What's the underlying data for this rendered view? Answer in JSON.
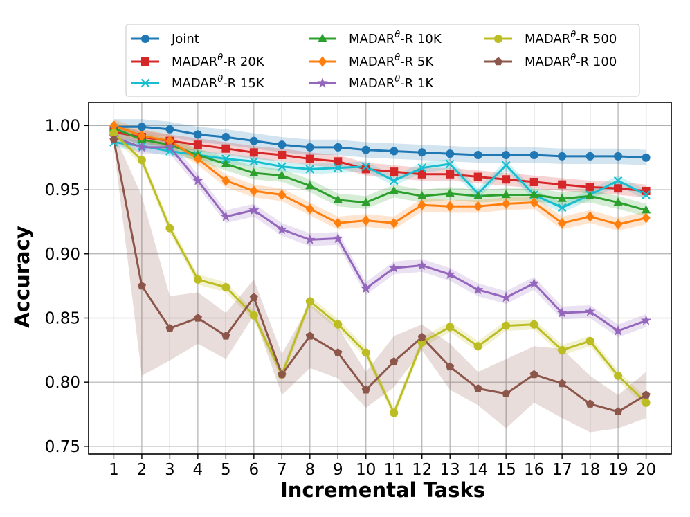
{
  "chart_data": {
    "type": "line",
    "title": "",
    "xlabel": "Incremental Tasks",
    "ylabel": "Accuracy",
    "x": [
      1,
      2,
      3,
      4,
      5,
      6,
      7,
      8,
      9,
      10,
      11,
      12,
      13,
      14,
      15,
      16,
      17,
      18,
      19,
      20
    ],
    "xlim": [
      0.1,
      20.9
    ],
    "ylim": [
      0.744,
      1.018
    ],
    "yticks": [
      0.75,
      0.8,
      0.85,
      0.9,
      0.95,
      1.0
    ],
    "ytick_labels": [
      "0.75",
      "0.80",
      "0.85",
      "0.90",
      "0.95",
      "1.00"
    ],
    "grid": true,
    "legend": "top-center (above plot), 3 columns",
    "series": [
      {
        "name": "Joint",
        "label_base": "Joint",
        "color": "#1f77b4",
        "marker": "circle",
        "values": [
          0.999,
          0.999,
          0.997,
          0.993,
          0.991,
          0.988,
          0.985,
          0.983,
          0.983,
          0.981,
          0.98,
          0.979,
          0.978,
          0.977,
          0.977,
          0.977,
          0.976,
          0.976,
          0.976,
          0.975
        ],
        "spread": [
          0.006,
          0.006,
          0.006,
          0.006,
          0.006,
          0.006,
          0.006,
          0.006,
          0.006,
          0.006,
          0.006,
          0.006,
          0.006,
          0.006,
          0.006,
          0.006,
          0.006,
          0.006,
          0.006,
          0.006
        ]
      },
      {
        "name": "MADARθ-R 20K",
        "label_base": "MADAR",
        "label_sup": "θ",
        "label_rest": "-R 20K",
        "color": "#d62728",
        "marker": "square",
        "values": [
          0.995,
          0.991,
          0.988,
          0.985,
          0.982,
          0.979,
          0.977,
          0.974,
          0.972,
          0.966,
          0.964,
          0.962,
          0.962,
          0.96,
          0.958,
          0.956,
          0.954,
          0.952,
          0.951,
          0.949
        ],
        "spread": [
          0.005,
          0.005,
          0.005,
          0.005,
          0.005,
          0.005,
          0.005,
          0.005,
          0.005,
          0.005,
          0.005,
          0.005,
          0.005,
          0.005,
          0.005,
          0.005,
          0.005,
          0.005,
          0.005,
          0.005
        ]
      },
      {
        "name": "MADARθ-R 15K",
        "label_base": "MADAR",
        "label_sup": "θ",
        "label_rest": "-R 15K",
        "color": "#17becf",
        "marker": "x",
        "values": [
          0.987,
          0.984,
          0.98,
          0.977,
          0.974,
          0.972,
          0.968,
          0.966,
          0.967,
          0.968,
          0.957,
          0.967,
          0.97,
          0.947,
          0.969,
          0.946,
          0.936,
          0.946,
          0.957,
          0.946
        ],
        "spread": [
          0.004,
          0.004,
          0.004,
          0.004,
          0.004,
          0.004,
          0.004,
          0.004,
          0.004,
          0.004,
          0.004,
          0.004,
          0.004,
          0.004,
          0.004,
          0.004,
          0.004,
          0.004,
          0.004,
          0.004
        ]
      },
      {
        "name": "MADARθ-R 10K",
        "label_base": "MADAR",
        "label_sup": "θ",
        "label_rest": "-R 10K",
        "color": "#2ca02c",
        "marker": "triangle",
        "values": [
          0.998,
          0.989,
          0.985,
          0.977,
          0.97,
          0.963,
          0.961,
          0.953,
          0.942,
          0.94,
          0.949,
          0.945,
          0.947,
          0.945,
          0.946,
          0.946,
          0.943,
          0.945,
          0.94,
          0.934
        ],
        "spread": [
          0.005,
          0.005,
          0.005,
          0.005,
          0.005,
          0.005,
          0.005,
          0.005,
          0.005,
          0.005,
          0.005,
          0.005,
          0.005,
          0.005,
          0.005,
          0.005,
          0.005,
          0.005,
          0.005,
          0.005
        ]
      },
      {
        "name": "MADARθ-R 5K",
        "label_base": "MADAR",
        "label_sup": "θ",
        "label_rest": "-R 5K",
        "color": "#ff7f0e",
        "marker": "diamond",
        "values": [
          1.0,
          0.992,
          0.988,
          0.974,
          0.957,
          0.949,
          0.946,
          0.935,
          0.924,
          0.926,
          0.924,
          0.938,
          0.937,
          0.937,
          0.939,
          0.94,
          0.924,
          0.929,
          0.923,
          0.928
        ],
        "spread": [
          0.005,
          0.005,
          0.005,
          0.005,
          0.005,
          0.005,
          0.005,
          0.005,
          0.005,
          0.005,
          0.005,
          0.005,
          0.005,
          0.005,
          0.005,
          0.005,
          0.005,
          0.005,
          0.005,
          0.005
        ]
      },
      {
        "name": "MADARθ-R 1K",
        "label_base": "MADAR",
        "label_sup": "θ",
        "label_rest": "-R 1K",
        "color": "#9467bd",
        "marker": "star",
        "values": [
          0.991,
          0.983,
          0.983,
          0.957,
          0.929,
          0.934,
          0.919,
          0.911,
          0.912,
          0.873,
          0.889,
          0.891,
          0.884,
          0.872,
          0.866,
          0.877,
          0.854,
          0.855,
          0.84,
          0.848
        ],
        "spread": [
          0.005,
          0.005,
          0.005,
          0.005,
          0.005,
          0.005,
          0.005,
          0.005,
          0.005,
          0.005,
          0.005,
          0.005,
          0.005,
          0.005,
          0.005,
          0.005,
          0.005,
          0.005,
          0.005,
          0.005
        ]
      },
      {
        "name": "MADARθ-R 500",
        "label_base": "MADAR",
        "label_sup": "θ",
        "label_rest": "-R 500",
        "color": "#bcbd22",
        "marker": "circle",
        "values": [
          0.994,
          0.973,
          0.92,
          0.88,
          0.874,
          0.852,
          0.806,
          0.863,
          0.845,
          0.823,
          0.776,
          0.831,
          0.843,
          0.828,
          0.844,
          0.845,
          0.825,
          0.832,
          0.805,
          0.784
        ],
        "spread": [
          0.004,
          0.004,
          0.004,
          0.004,
          0.004,
          0.004,
          0.004,
          0.004,
          0.004,
          0.004,
          0.004,
          0.004,
          0.004,
          0.004,
          0.004,
          0.004,
          0.004,
          0.004,
          0.004,
          0.004
        ]
      },
      {
        "name": "MADARθ-R 100",
        "label_base": "MADAR",
        "label_sup": "θ",
        "label_rest": "-R 100",
        "color": "#8c564b",
        "marker": "pentagon",
        "values": [
          0.989,
          0.875,
          0.842,
          0.85,
          0.836,
          0.866,
          0.806,
          0.836,
          0.823,
          0.794,
          0.816,
          0.835,
          0.812,
          0.795,
          0.791,
          0.806,
          0.799,
          0.783,
          0.777,
          0.79
        ],
        "spread": [
          0.005,
          0.07,
          0.025,
          0.02,
          0.018,
          0.014,
          0.016,
          0.025,
          0.02,
          0.014,
          0.02,
          0.01,
          0.018,
          0.013,
          0.027,
          0.022,
          0.027,
          0.022,
          0.013,
          0.018
        ]
      }
    ]
  }
}
